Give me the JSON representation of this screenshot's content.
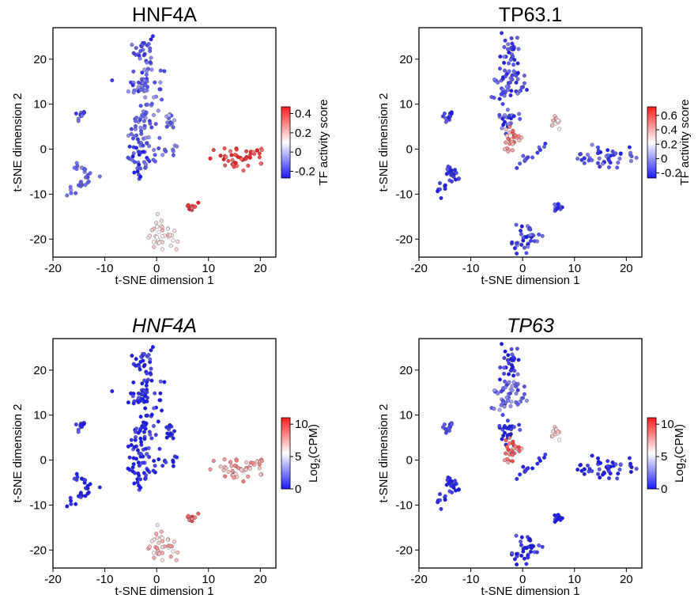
{
  "chart_data": [
    {
      "type": "scatter",
      "title": "HNF4A",
      "title_italic": false,
      "xlabel": "t-SNE dimension 1",
      "ylabel": "t-SNE dimension 2",
      "xlim": [
        -20,
        23
      ],
      "ylim": [
        -24,
        27
      ],
      "xticks": [
        -20,
        -10,
        0,
        10,
        20
      ],
      "yticks": [
        -20,
        -10,
        0,
        10,
        20
      ],
      "colorbar": {
        "label": "TF activity score",
        "ticks": [
          "-0.2",
          "0",
          "0.2",
          "0.4"
        ],
        "tick_values": [
          -0.2,
          0,
          0.2,
          0.4
        ],
        "range": [
          -0.27,
          0.47
        ],
        "cmap": "coolwarm"
      },
      "clusters": [
        {
          "name": "top",
          "center": [
            -2.5,
            22
          ],
          "spread": [
            0.9,
            2.0
          ],
          "value": -0.18
        },
        {
          "name": "upper",
          "center": [
            -2.3,
            14.5
          ],
          "spread": [
            1.8,
            2.2
          ],
          "value": -0.15
        },
        {
          "name": "mid",
          "center": [
            -2.8,
            5
          ],
          "spread": [
            1.3,
            3.0
          ],
          "value": -0.15
        },
        {
          "name": "left-small",
          "center": [
            -14.5,
            7.6
          ],
          "spread": [
            0.5,
            0.7
          ],
          "value": -0.14
        },
        {
          "name": "center-right",
          "center": [
            2.5,
            6.2
          ],
          "spread": [
            0.5,
            0.7
          ],
          "value": -0.1
        },
        {
          "name": "lower-left",
          "center": [
            -3.5,
            -2
          ],
          "spread": [
            1.0,
            1.8
          ],
          "value": -0.22
        },
        {
          "name": "right-big",
          "center": [
            16.5,
            -2
          ],
          "spread": [
            3.0,
            1.2
          ],
          "value": 0.42
        },
        {
          "name": "bottom",
          "center": [
            1.0,
            -19.5
          ],
          "spread": [
            1.5,
            1.7
          ],
          "value": 0.15
        },
        {
          "name": "small-red",
          "center": [
            7.0,
            -13
          ],
          "spread": [
            0.6,
            0.5
          ],
          "value": 0.42
        }
      ],
      "trails": [
        {
          "from": [
            -17.5,
            -10
          ],
          "to": [
            -12,
            -6
          ],
          "value": -0.12
        },
        {
          "from": [
            -4,
            -4
          ],
          "to": [
            5,
            1
          ],
          "value": -0.12
        },
        {
          "from": [
            -15,
            -4
          ],
          "to": [
            -13,
            -6
          ],
          "value": -0.14
        }
      ]
    },
    {
      "type": "scatter",
      "title": "TP63.1",
      "title_italic": false,
      "xlabel": "t-SNE dimension 1",
      "ylabel": "t-SNE dimension 2",
      "xlim": [
        -20,
        23
      ],
      "ylim": [
        -24,
        27
      ],
      "xticks": [
        -20,
        -10,
        0,
        10,
        20
      ],
      "yticks": [
        -20,
        -10,
        0,
        10,
        20
      ],
      "colorbar": {
        "label": "TF activity score",
        "ticks": [
          "-0.2",
          "0",
          "0.2",
          "0.4",
          "0.6"
        ],
        "tick_values": [
          -0.2,
          0,
          0.2,
          0.4,
          0.6
        ],
        "range": [
          -0.27,
          0.72
        ],
        "cmap": "coolwarm"
      },
      "clusters": [
        {
          "name": "top",
          "center": [
            -2.5,
            22
          ],
          "spread": [
            0.9,
            2.0
          ],
          "value": -0.17
        },
        {
          "name": "upper",
          "center": [
            -2.3,
            14.5
          ],
          "spread": [
            1.8,
            2.2
          ],
          "value": -0.16
        },
        {
          "name": "mid",
          "center": [
            -2.8,
            6.5
          ],
          "spread": [
            1.0,
            1.5
          ],
          "value": -0.15
        },
        {
          "name": "mid-red",
          "center": [
            -2.0,
            1.5
          ],
          "spread": [
            0.9,
            1.8
          ],
          "value": 0.45
        },
        {
          "name": "left-small",
          "center": [
            -14.5,
            7.6
          ],
          "spread": [
            0.5,
            0.7
          ],
          "value": -0.2
        },
        {
          "name": "center-right",
          "center": [
            6.5,
            6.2
          ],
          "spread": [
            0.5,
            0.6
          ],
          "value": 0.3
        },
        {
          "name": "right-big",
          "center": [
            16.0,
            -2
          ],
          "spread": [
            3.0,
            1.2
          ],
          "value": -0.15
        },
        {
          "name": "bottom",
          "center": [
            1.0,
            -19.5
          ],
          "spread": [
            1.5,
            1.7
          ],
          "value": -0.17
        },
        {
          "name": "small",
          "center": [
            7.0,
            -13
          ],
          "spread": [
            0.6,
            0.5
          ],
          "value": -0.18
        }
      ],
      "trails": [
        {
          "from": [
            -17.5,
            -10
          ],
          "to": [
            -12,
            -6
          ],
          "value": -0.22
        },
        {
          "from": [
            -2,
            -4
          ],
          "to": [
            5,
            1
          ],
          "value": -0.15
        },
        {
          "from": [
            -15,
            -4
          ],
          "to": [
            -13,
            -6
          ],
          "value": -0.2
        }
      ]
    },
    {
      "type": "scatter",
      "title": "HNF4A",
      "title_italic": true,
      "xlabel": "t-SNE dimension 1",
      "ylabel": "t-SNE dimension 2",
      "xlim": [
        -20,
        23
      ],
      "ylim": [
        -24,
        27
      ],
      "xticks": [
        -20,
        -10,
        0,
        10,
        20
      ],
      "yticks": [
        -20,
        -10,
        0,
        10,
        20
      ],
      "colorbar": {
        "label_main": "Log",
        "label_sub": "2",
        "label_rest": "(CPM)",
        "ticks": [
          "0",
          "5",
          "10"
        ],
        "tick_values": [
          0,
          5,
          10
        ],
        "range": [
          0,
          11
        ],
        "cmap": "coolwarm"
      },
      "clusters": [
        {
          "name": "top",
          "center": [
            -2.5,
            22
          ],
          "spread": [
            0.9,
            2.0
          ],
          "value": 0.3
        },
        {
          "name": "upper",
          "center": [
            -2.3,
            14.5
          ],
          "spread": [
            1.8,
            2.2
          ],
          "value": 0.3
        },
        {
          "name": "mid",
          "center": [
            -2.8,
            5
          ],
          "spread": [
            1.3,
            3.0
          ],
          "value": 0.3
        },
        {
          "name": "left-small",
          "center": [
            -14.5,
            7.6
          ],
          "spread": [
            0.5,
            0.7
          ],
          "value": 0.3
        },
        {
          "name": "center-right",
          "center": [
            2.5,
            6.2
          ],
          "spread": [
            0.5,
            0.7
          ],
          "value": 0.3
        },
        {
          "name": "lower-left",
          "center": [
            -3.5,
            -2
          ],
          "spread": [
            1.0,
            1.8
          ],
          "value": 0.3
        },
        {
          "name": "right-big",
          "center": [
            16.5,
            -2
          ],
          "spread": [
            3.0,
            1.2
          ],
          "value": 7.5
        },
        {
          "name": "bottom",
          "center": [
            1.0,
            -19.5
          ],
          "spread": [
            1.5,
            1.7
          ],
          "value": 7.2
        },
        {
          "name": "small-red",
          "center": [
            7.0,
            -13
          ],
          "spread": [
            0.6,
            0.5
          ],
          "value": 9.5
        }
      ],
      "trails": [
        {
          "from": [
            -17.5,
            -10
          ],
          "to": [
            -12,
            -6
          ],
          "value": 0.3
        },
        {
          "from": [
            -4,
            -4
          ],
          "to": [
            5,
            1
          ],
          "value": 0.3
        },
        {
          "from": [
            -15,
            -4
          ],
          "to": [
            -13,
            -6
          ],
          "value": 0.3
        }
      ]
    },
    {
      "type": "scatter",
      "title": "TP63",
      "title_italic": true,
      "xlabel": "t-SNE dimension 1",
      "ylabel": "t-SNE dimension 2",
      "xlim": [
        -20,
        23
      ],
      "ylim": [
        -24,
        27
      ],
      "xticks": [
        -20,
        -10,
        0,
        10,
        20
      ],
      "yticks": [
        -20,
        -10,
        0,
        10,
        20
      ],
      "colorbar": {
        "label_main": "Log",
        "label_sub": "2",
        "label_rest": "(CPM)",
        "ticks": [
          "0",
          "5",
          "10"
        ],
        "tick_values": [
          0,
          5,
          10
        ],
        "range": [
          0,
          11
        ],
        "cmap": "coolwarm"
      },
      "clusters": [
        {
          "name": "top",
          "center": [
            -2.5,
            22
          ],
          "spread": [
            0.9,
            2.0
          ],
          "value": 0.5
        },
        {
          "name": "upper",
          "center": [
            -2.3,
            14.5
          ],
          "spread": [
            1.8,
            2.2
          ],
          "value": 2.0
        },
        {
          "name": "mid",
          "center": [
            -2.8,
            6.5
          ],
          "spread": [
            1.0,
            1.5
          ],
          "value": 0.4
        },
        {
          "name": "mid-red",
          "center": [
            -2.0,
            1.5
          ],
          "spread": [
            0.9,
            1.8
          ],
          "value": 8.8
        },
        {
          "name": "left-small",
          "center": [
            -14.5,
            7.6
          ],
          "spread": [
            0.5,
            0.7
          ],
          "value": 1.0
        },
        {
          "name": "center-right",
          "center": [
            6.5,
            6.2
          ],
          "spread": [
            0.5,
            0.6
          ],
          "value": 6.5
        },
        {
          "name": "right-big",
          "center": [
            16.0,
            -2
          ],
          "spread": [
            3.0,
            1.2
          ],
          "value": 0.3
        },
        {
          "name": "bottom",
          "center": [
            1.0,
            -19.5
          ],
          "spread": [
            1.5,
            1.7
          ],
          "value": 0.3
        },
        {
          "name": "small",
          "center": [
            7.0,
            -13
          ],
          "spread": [
            0.6,
            0.5
          ],
          "value": 0.3
        }
      ],
      "trails": [
        {
          "from": [
            -17.5,
            -10
          ],
          "to": [
            -12,
            -6
          ],
          "value": 0.3
        },
        {
          "from": [
            -2,
            -4
          ],
          "to": [
            5,
            1
          ],
          "value": 0.3
        },
        {
          "from": [
            -15,
            -4
          ],
          "to": [
            -13,
            -6
          ],
          "value": 0.3
        }
      ]
    }
  ]
}
